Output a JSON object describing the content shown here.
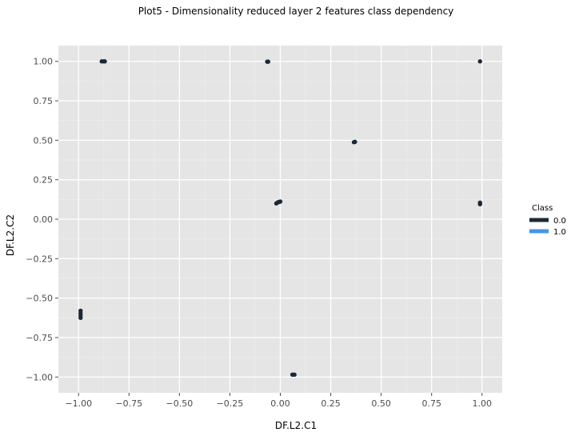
{
  "chart_data": {
    "type": "scatter",
    "title": "Plot5 - Dimensionality reduced layer 2 features class dependency",
    "xlabel": "DF.L2.C1",
    "ylabel": "DF.L2.C2",
    "xlim": [
      -1.1,
      1.1
    ],
    "ylim": [
      -1.1,
      1.1
    ],
    "x_ticks": [
      -1.0,
      -0.75,
      -0.5,
      -0.25,
      0.0,
      0.25,
      0.5,
      0.75,
      1.0
    ],
    "x_tick_labels": [
      "−1.00",
      "−0.75",
      "−0.50",
      "−0.25",
      "0.00",
      "0.25",
      "0.50",
      "0.75",
      "1.00"
    ],
    "y_ticks": [
      1.0,
      0.75,
      0.5,
      0.25,
      0.0,
      -0.25,
      -0.5,
      -0.75,
      -1.0
    ],
    "y_tick_labels": [
      "1.00",
      "0.75",
      "0.50",
      "0.25",
      "0.00",
      "−0.25",
      "−0.50",
      "−0.75",
      "−1.00"
    ],
    "grid": true,
    "legend": {
      "title": "Class",
      "position": "right",
      "entries": [
        {
          "label": "0.0",
          "color": "#1b2838"
        },
        {
          "label": "1.0",
          "color": "#4296e8"
        }
      ]
    },
    "series": [
      {
        "name": "0.0",
        "color": "#1b2838",
        "points": [
          {
            "x": -0.885,
            "y": 1.0
          },
          {
            "x": -0.875,
            "y": 1.0
          },
          {
            "x": -0.87,
            "y": 1.0
          },
          {
            "x": -0.065,
            "y": 0.998
          },
          {
            "x": -0.06,
            "y": 0.998
          },
          {
            "x": 0.99,
            "y": 1.0
          },
          {
            "x": 0.37,
            "y": 0.49
          },
          {
            "x": 0.365,
            "y": 0.488
          },
          {
            "x": -0.02,
            "y": 0.1
          },
          {
            "x": -0.015,
            "y": 0.104
          },
          {
            "x": -0.01,
            "y": 0.108
          },
          {
            "x": -0.005,
            "y": 0.11
          },
          {
            "x": 0.0,
            "y": 0.112
          },
          {
            "x": 0.99,
            "y": 0.095
          },
          {
            "x": 0.99,
            "y": 0.105
          },
          {
            "x": -0.99,
            "y": -0.58
          },
          {
            "x": -0.99,
            "y": -0.595
          },
          {
            "x": -0.99,
            "y": -0.61
          },
          {
            "x": -0.99,
            "y": -0.625
          },
          {
            "x": 0.06,
            "y": -0.985
          },
          {
            "x": 0.07,
            "y": -0.985
          }
        ]
      }
    ]
  }
}
